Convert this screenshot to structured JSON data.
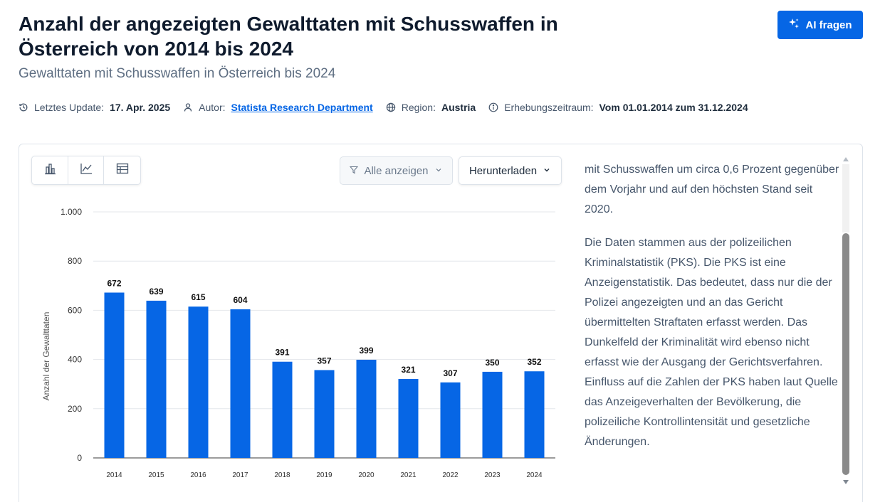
{
  "header": {
    "title": "Anzahl der angezeigten Gewalttaten mit Schusswaffen in Österreich von 2014 bis 2024",
    "subtitle": "Gewalttaten mit Schusswaffen in Österreich bis 2024",
    "ai_button_label": "AI fragen"
  },
  "meta": {
    "update_label": "Letztes Update:",
    "update_value": "17. Apr. 2025",
    "author_label": "Autor:",
    "author_value": "Statista Research Department",
    "region_label": "Region:",
    "region_value": "Austria",
    "period_label": "Erhebungszeitraum:",
    "period_value": "Vom 01.01.2014 zum 31.12.2024"
  },
  "toolbar": {
    "view_icons": [
      "bar-chart-icon",
      "line-chart-icon",
      "table-icon"
    ],
    "filter_label": "Alle anzeigen",
    "download_label": "Herunterladen"
  },
  "chart_data": {
    "type": "bar",
    "categories": [
      "2014",
      "2015",
      "2016",
      "2017",
      "2018",
      "2019",
      "2020",
      "2021",
      "2022",
      "2023",
      "2024"
    ],
    "values": [
      672,
      639,
      615,
      604,
      391,
      357,
      399,
      321,
      307,
      350,
      352
    ],
    "value_labels": [
      "672",
      "639",
      "615",
      "604",
      "391",
      "357",
      "399",
      "321",
      "307",
      "350",
      "352"
    ],
    "ylabel": "Anzahl der Gewalttaten",
    "ylim": [
      0,
      1000
    ],
    "yticks": [
      0,
      200,
      400,
      600,
      800,
      1000
    ],
    "ytick_labels": [
      "0",
      "200",
      "400",
      "600",
      "800",
      "1.000"
    ],
    "grid": true,
    "bar_color": "#0666e5"
  },
  "description": {
    "paragraph1": "mit Schusswaffen um circa 0,6 Prozent gegenüber dem Vorjahr und auf den höchsten Stand seit 2020.",
    "paragraph2": "Die Daten stammen aus der polizeilichen Kriminalstatistik (PKS). Die PKS ist eine Anzeigenstatistik. Das bedeutet, dass nur die der Polizei angezeigten und an das Gericht übermittelten Straftaten erfasst werden. Das Dunkelfeld der Kriminalität wird ebenso nicht erfasst wie der Ausgang der Gerichtsverfahren. Einfluss auf die Zahlen der PKS haben laut Quelle das Anzeigeverhalten der Bevölkerung, die polizeiliche Kontrollintensität und gesetzliche Änderungen."
  },
  "colors": {
    "accent": "#0666e5",
    "title": "#0f1b2d",
    "muted": "#5e6e82"
  }
}
